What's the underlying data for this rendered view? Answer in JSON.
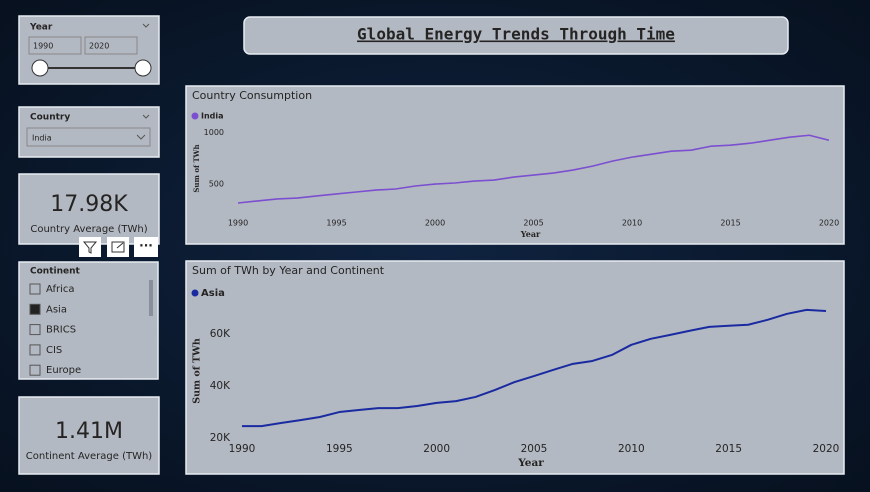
{
  "header": {
    "title": "Global Energy Trends Through Time"
  },
  "slicers": {
    "year": {
      "label": "Year",
      "from": "1990",
      "to": "2020"
    },
    "country": {
      "label": "Country",
      "selected": "India"
    },
    "continent": {
      "label": "Continent",
      "items": [
        {
          "label": "Africa",
          "checked": false
        },
        {
          "label": "Asia",
          "checked": true
        },
        {
          "label": "BRICS",
          "checked": false
        },
        {
          "label": "CIS",
          "checked": false
        },
        {
          "label": "Europe",
          "checked": false
        }
      ]
    }
  },
  "cards": [
    {
      "value": "17.98K",
      "label": "Country Average (TWh)"
    },
    {
      "value": "1.41M",
      "label": "Continent Average (TWh)"
    }
  ],
  "chart_data": [
    {
      "type": "line",
      "title": "Country Consumption",
      "x_label": "Year",
      "y_label": "Sum of TWh",
      "x": [
        1990,
        1991,
        1992,
        1993,
        1994,
        1995,
        1996,
        1997,
        1998,
        1999,
        2000,
        2001,
        2002,
        2003,
        2004,
        2005,
        2006,
        2007,
        2008,
        2009,
        2010,
        2011,
        2012,
        2013,
        2014,
        2015,
        2016,
        2017,
        2018,
        2019,
        2020
      ],
      "series": [
        {
          "name": "India",
          "color": "#7b4fd0",
          "values": [
            317,
            337,
            356,
            365,
            385,
            404,
            423,
            442,
            452,
            481,
            500,
            510,
            529,
            538,
            567,
            587,
            606,
            635,
            673,
            721,
            760,
            788,
            817,
            827,
            865,
            875,
            894,
            923,
            952,
            971,
            923
          ]
        }
      ],
      "xlim": [
        1990,
        2020
      ],
      "xticks": [
        1990,
        1995,
        2000,
        2005,
        2010,
        2015,
        2020
      ],
      "ylim": [
        230,
        1070
      ],
      "yticks": [
        500,
        1000
      ],
      "grid": false
    },
    {
      "type": "line",
      "title": "Sum of TWh by Year and Continent",
      "x_label": "Year",
      "y_label": "Sum of TWh",
      "x": [
        1990,
        1991,
        1992,
        1993,
        1994,
        1995,
        1996,
        1997,
        1998,
        1999,
        2000,
        2001,
        2002,
        2003,
        2004,
        2005,
        2006,
        2007,
        2008,
        2009,
        2010,
        2011,
        2012,
        2013,
        2014,
        2015,
        2016,
        2017,
        2018,
        2019,
        2020
      ],
      "series": [
        {
          "name": "Asia",
          "color": "#1a2aa0",
          "values": [
            24600,
            24600,
            25800,
            26900,
            28100,
            30000,
            30800,
            31500,
            31500,
            32300,
            33500,
            34200,
            35800,
            38500,
            41500,
            43800,
            46200,
            48500,
            49600,
            51900,
            55800,
            58100,
            59600,
            61200,
            62700,
            63100,
            63500,
            65400,
            67700,
            69200,
            68800
          ]
        }
      ],
      "xlim": [
        1990,
        2020
      ],
      "xticks": [
        1990,
        1995,
        2000,
        2005,
        2010,
        2015,
        2020
      ],
      "ylim": [
        18500,
        73000
      ],
      "yticks": [
        {
          "value": 20000,
          "label": "20K"
        },
        {
          "value": 40000,
          "label": "40K"
        },
        {
          "value": 60000,
          "label": "60K"
        }
      ],
      "grid": false
    }
  ]
}
